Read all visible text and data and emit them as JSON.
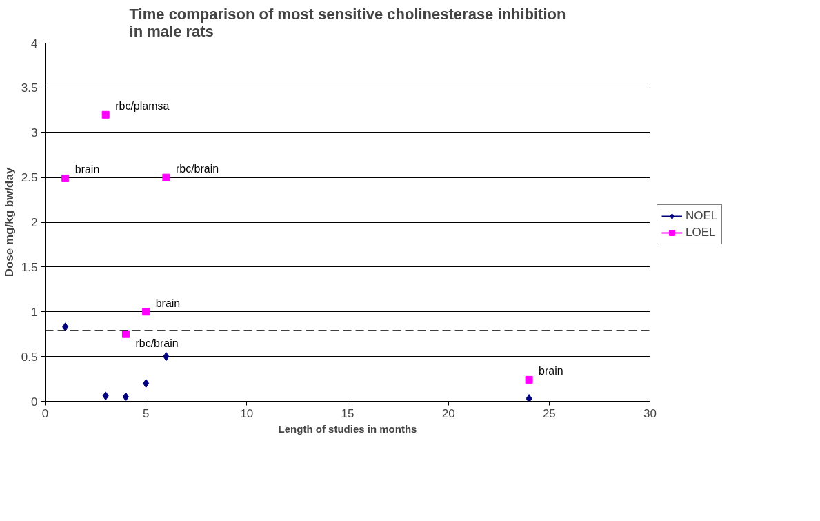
{
  "chart_data": {
    "type": "scatter",
    "title": "Time comparison of most sensitive cholinesterase inhibition in male rats",
    "xlabel": "Length of studies in months",
    "ylabel": "Dose mg/kg bw/day",
    "series": [
      {
        "name": "NOEL",
        "color": "#000080",
        "marker": "diamond",
        "x": [
          1,
          3,
          4,
          5,
          6,
          24
        ],
        "values": [
          0.83,
          0.06,
          0.05,
          0.2,
          0.5,
          0.03
        ]
      },
      {
        "name": "LOEL",
        "color": "#ff00ff",
        "marker": "square",
        "x": [
          1,
          3,
          4,
          5,
          6,
          24
        ],
        "values": [
          2.49,
          3.2,
          0.75,
          1.0,
          2.5,
          0.24
        ]
      }
    ],
    "annotations": [
      {
        "text": "brain",
        "x": 1,
        "y": 2.49
      },
      {
        "text": "rbc/plamsa",
        "x": 3,
        "y": 3.2
      },
      {
        "text": "rbc/brain",
        "x": 6,
        "y": 2.5
      },
      {
        "text": "brain",
        "x": 5,
        "y": 1.0
      },
      {
        "text": "rbc/brain",
        "x": 4,
        "y": 0.75
      },
      {
        "text": "brain",
        "x": 24,
        "y": 0.24
      }
    ],
    "ref_lines": [
      {
        "axis": "y",
        "value": 0.79,
        "color": "#000000",
        "line_style": "dashed"
      }
    ],
    "xlim": [
      0,
      30
    ],
    "xticks": [
      0,
      5,
      10,
      15,
      20,
      25,
      30
    ],
    "ylim": [
      0,
      4
    ],
    "yticks": [
      0,
      0.5,
      1,
      1.5,
      2,
      2.5,
      3,
      3.5,
      4
    ],
    "grid": "y",
    "legend": "right"
  }
}
